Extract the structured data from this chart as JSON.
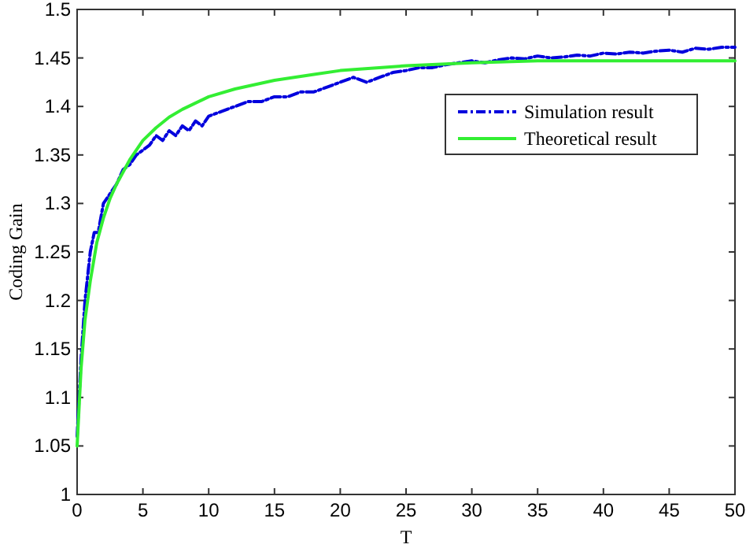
{
  "chart_data": {
    "type": "line",
    "xlabel": "T",
    "ylabel": "Coding Gain",
    "xlim": [
      0,
      50
    ],
    "ylim": [
      1,
      1.5
    ],
    "xticks": [
      0,
      5,
      10,
      15,
      20,
      25,
      30,
      35,
      40,
      45,
      50
    ],
    "yticks": [
      1,
      1.05,
      1.1,
      1.15,
      1.2,
      1.25,
      1.3,
      1.35,
      1.4,
      1.45,
      1.5
    ],
    "grid": false,
    "legend": "top right",
    "marker": "none",
    "series": [
      {
        "name": "Simulation result",
        "color": "#0000dd",
        "line_style": "dashed",
        "x": [
          0,
          0.3,
          0.6,
          1,
          1.3,
          1.6,
          2,
          2.5,
          3,
          3.5,
          4,
          4.5,
          5,
          5.5,
          6,
          6.5,
          7,
          7.5,
          8,
          8.5,
          9,
          9.5,
          10,
          11,
          12,
          13,
          14,
          15,
          16,
          17,
          18,
          19,
          20,
          21,
          22,
          23,
          24,
          25,
          26,
          27,
          28,
          29,
          30,
          31,
          32,
          33,
          34,
          35,
          36,
          37,
          38,
          39,
          40,
          41,
          42,
          43,
          44,
          45,
          46,
          47,
          48,
          49,
          50
        ],
        "values": [
          1.06,
          1.14,
          1.2,
          1.25,
          1.27,
          1.27,
          1.3,
          1.31,
          1.32,
          1.335,
          1.34,
          1.35,
          1.355,
          1.36,
          1.37,
          1.365,
          1.375,
          1.37,
          1.38,
          1.375,
          1.385,
          1.38,
          1.39,
          1.395,
          1.4,
          1.405,
          1.405,
          1.41,
          1.41,
          1.415,
          1.415,
          1.42,
          1.425,
          1.43,
          1.425,
          1.43,
          1.435,
          1.437,
          1.44,
          1.44,
          1.443,
          1.445,
          1.447,
          1.445,
          1.448,
          1.45,
          1.449,
          1.452,
          1.45,
          1.451,
          1.453,
          1.452,
          1.455,
          1.454,
          1.456,
          1.455,
          1.457,
          1.458,
          1.456,
          1.46,
          1.459,
          1.461,
          1.461
        ]
      },
      {
        "name": "Theoretical result",
        "color": "#33ee33",
        "line_style": "solid",
        "x": [
          0,
          0.3,
          0.6,
          1,
          1.5,
          2,
          2.5,
          3,
          4,
          5,
          6,
          7,
          8,
          10,
          12,
          15,
          18,
          20,
          25,
          30,
          35,
          40,
          45,
          50
        ],
        "values": [
          1.05,
          1.13,
          1.18,
          1.22,
          1.26,
          1.285,
          1.305,
          1.32,
          1.345,
          1.365,
          1.378,
          1.389,
          1.397,
          1.41,
          1.418,
          1.427,
          1.433,
          1.437,
          1.442,
          1.445,
          1.447,
          1.447,
          1.447,
          1.447
        ]
      }
    ]
  }
}
